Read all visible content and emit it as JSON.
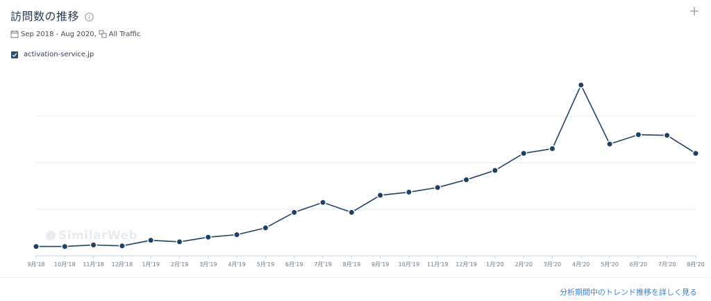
{
  "header": {
    "title": "訪問数の推移",
    "date_range": "Sep 2018 - Aug 2020,",
    "traffic_type": "All Traffic"
  },
  "legend": {
    "site": "activation-service.jp"
  },
  "watermark": "SimilarWeb",
  "footer": {
    "link_label": "分析期間中のトレンド推移を詳しく見る"
  },
  "icons": [
    "info-icon",
    "calendar-icon",
    "traffic-icon",
    "plus-icon",
    "check-icon"
  ],
  "colors": {
    "line": "#1f3f63",
    "link": "#3d7fd6",
    "grid": "#e6e8eb"
  },
  "chart_data": {
    "type": "line",
    "categories": [
      "9月'18",
      "10月'18",
      "11月'18",
      "12月'18",
      "1月'19",
      "2月'19",
      "3月'19",
      "4月'19",
      "5月'19",
      "6月'19",
      "7月'19",
      "8月'19",
      "9月'19",
      "10月'19",
      "11月'19",
      "12月'19",
      "1月'20",
      "2月'20",
      "3月'20",
      "4月'20",
      "5月'20",
      "6月'20",
      "7月'20",
      "8月'20"
    ],
    "series": [
      {
        "name": "activation-service.jp",
        "values": [
          0.3,
          0.3,
          0.35,
          0.32,
          0.5,
          0.45,
          0.6,
          0.68,
          0.9,
          1.4,
          1.72,
          1.4,
          1.95,
          2.05,
          2.2,
          2.45,
          2.75,
          3.3,
          3.45,
          5.5,
          3.6,
          3.9,
          3.88,
          3.3
        ]
      }
    ],
    "ylim": [
      0,
      6
    ],
    "grid": true,
    "legend_placement": "top-left"
  }
}
